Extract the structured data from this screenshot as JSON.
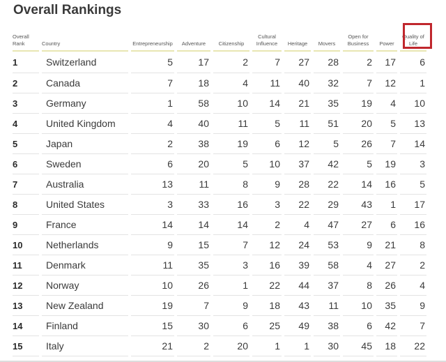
{
  "title": "Overall Rankings",
  "columns": {
    "rank": "Overall Rank",
    "country": "Country",
    "entrepreneurship": "Entrepreneurship",
    "adventure": "Adventure",
    "citizenship": "Citizenship",
    "cultural_influence": "Cultural Influence",
    "heritage": "Heritage",
    "movers": "Movers",
    "open_for_business": "Open for Business",
    "power": "Power",
    "quality_of_life": "Quality of Life"
  },
  "highlight_color": "#c0272d",
  "rows": [
    {
      "rank": "1",
      "country": "Switzerland",
      "values": [
        "5",
        "17",
        "2",
        "7",
        "27",
        "28",
        "2",
        "17",
        "6"
      ]
    },
    {
      "rank": "2",
      "country": "Canada",
      "values": [
        "7",
        "18",
        "4",
        "11",
        "40",
        "32",
        "7",
        "12",
        "1"
      ]
    },
    {
      "rank": "3",
      "country": "Germany",
      "values": [
        "1",
        "58",
        "10",
        "14",
        "21",
        "35",
        "19",
        "4",
        "10"
      ]
    },
    {
      "rank": "4",
      "country": "United Kingdom",
      "values": [
        "4",
        "40",
        "11",
        "5",
        "11",
        "51",
        "20",
        "5",
        "13"
      ]
    },
    {
      "rank": "5",
      "country": "Japan",
      "values": [
        "2",
        "38",
        "19",
        "6",
        "12",
        "5",
        "26",
        "7",
        "14"
      ]
    },
    {
      "rank": "6",
      "country": "Sweden",
      "values": [
        "6",
        "20",
        "5",
        "10",
        "37",
        "42",
        "5",
        "19",
        "3"
      ]
    },
    {
      "rank": "7",
      "country": "Australia",
      "values": [
        "13",
        "11",
        "8",
        "9",
        "28",
        "22",
        "14",
        "16",
        "5"
      ]
    },
    {
      "rank": "8",
      "country": "United States",
      "values": [
        "3",
        "33",
        "16",
        "3",
        "22",
        "29",
        "43",
        "1",
        "17"
      ]
    },
    {
      "rank": "9",
      "country": "France",
      "values": [
        "14",
        "14",
        "14",
        "2",
        "4",
        "47",
        "27",
        "6",
        "16"
      ]
    },
    {
      "rank": "10",
      "country": "Netherlands",
      "values": [
        "9",
        "15",
        "7",
        "12",
        "24",
        "53",
        "9",
        "21",
        "8"
      ]
    },
    {
      "rank": "11",
      "country": "Denmark",
      "values": [
        "11",
        "35",
        "3",
        "16",
        "39",
        "58",
        "4",
        "27",
        "2"
      ]
    },
    {
      "rank": "12",
      "country": "Norway",
      "values": [
        "10",
        "26",
        "1",
        "22",
        "44",
        "37",
        "8",
        "26",
        "4"
      ]
    },
    {
      "rank": "13",
      "country": "New Zealand",
      "values": [
        "19",
        "7",
        "9",
        "18",
        "43",
        "11",
        "10",
        "35",
        "9"
      ]
    },
    {
      "rank": "14",
      "country": "Finland",
      "values": [
        "15",
        "30",
        "6",
        "25",
        "49",
        "38",
        "6",
        "42",
        "7"
      ]
    },
    {
      "rank": "15",
      "country": "Italy",
      "values": [
        "21",
        "2",
        "20",
        "1",
        "1",
        "30",
        "45",
        "18",
        "22"
      ]
    }
  ]
}
